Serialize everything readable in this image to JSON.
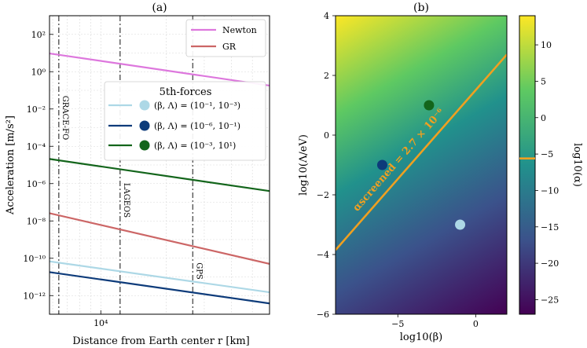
{
  "chart_data": [
    {
      "type": "line",
      "title": "(a)",
      "xlabel": "Distance from Earth center r [km]",
      "ylabel": "Acceleration [m/s²]",
      "xscale": "log",
      "yscale": "log",
      "xlim": [
        5800,
        60000
      ],
      "ylim": [
        1e-13,
        1000.0
      ],
      "grid": true,
      "xtick_labels": [
        {
          "x": 10000,
          "label": "10⁴"
        }
      ],
      "ytick_labels": [
        {
          "y": 100.0,
          "label": "10²"
        },
        {
          "y": 1.0,
          "label": "10⁰"
        },
        {
          "y": 0.01,
          "label": "10⁻²"
        },
        {
          "y": 0.0001,
          "label": "10⁻⁴"
        },
        {
          "y": 1e-06,
          "label": "10⁻⁶"
        },
        {
          "y": 1e-08,
          "label": "10⁻⁸"
        },
        {
          "y": 1e-10,
          "label": "10⁻¹⁰"
        },
        {
          "y": 1e-12,
          "label": "10⁻¹²"
        }
      ],
      "series": [
        {
          "name": "Newton",
          "color": "#dd77dd",
          "x": [
            5800,
            60000
          ],
          "y": [
            9.5,
            0.18
          ]
        },
        {
          "name": "GR",
          "color": "#cc6666",
          "x": [
            5800,
            60000
          ],
          "y": [
            2.6e-08,
            5e-11
          ]
        },
        {
          "name": "(β, Λ) = (10⁻¹, 10⁻³)",
          "color": "#add8e6",
          "x": [
            5800,
            60000
          ],
          "y": [
            6.8e-11,
            1.5e-12
          ]
        },
        {
          "name": "(β, Λ) = (10⁻⁶, 10⁻¹)",
          "color": "#0d3b7a",
          "x": [
            5800,
            60000
          ],
          "y": [
            1.8e-11,
            3.8e-13
          ]
        },
        {
          "name": "(β, Λ) = (10⁻³, 10¹)",
          "color": "#13651b",
          "x": [
            5800,
            60000
          ],
          "y": [
            2.1e-05,
            4e-07
          ]
        }
      ],
      "vlines": [
        {
          "x": 6400,
          "label": "GRACE-FO"
        },
        {
          "x": 12270,
          "label": "LAGEOS"
        },
        {
          "x": 26560,
          "label": "GPS"
        }
      ],
      "legend_boxes": [
        {
          "placement": "top-right",
          "entries": [
            "Newton",
            "GR"
          ]
        },
        {
          "placement": "upper-middle",
          "title": "5th-forces"
        }
      ]
    },
    {
      "type": "heatmap",
      "title": "(b)",
      "xlabel": "log10(β)",
      "ylabel": "log10(Λ/eV)",
      "xlim": [
        -9,
        2
      ],
      "ylim": [
        -6,
        4
      ],
      "xticks": [
        -5,
        0
      ],
      "yticks": [
        -6,
        -4,
        -2,
        0,
        2,
        4
      ],
      "xtick_labels": [
        "−5",
        "0"
      ],
      "ytick_labels": [
        "−6",
        "−4",
        "−2",
        "0",
        "2",
        "4"
      ],
      "colormap": "viridis",
      "colorbar": {
        "label": "log10(α)",
        "range": [
          -27,
          14
        ],
        "ticks": [
          10,
          5,
          0,
          -5,
          -10,
          -15,
          -20,
          -25
        ],
        "tick_labels": [
          "10",
          "5",
          "0",
          "−5",
          "−10",
          "−15",
          "−20",
          "−25"
        ],
        "marker_value": -5.6
      },
      "contour": {
        "label": "αscreened = 2.7 × 10⁻⁶",
        "color": "#f0a020",
        "x": [
          -9,
          2
        ],
        "y": [
          -3.85,
          2.7
        ]
      },
      "points": [
        {
          "x": -1,
          "y": -3,
          "color": "#add8e6"
        },
        {
          "x": -6,
          "y": -1,
          "color": "#0d3b7a"
        },
        {
          "x": -3,
          "y": 1,
          "color": "#13651b"
        }
      ]
    }
  ]
}
